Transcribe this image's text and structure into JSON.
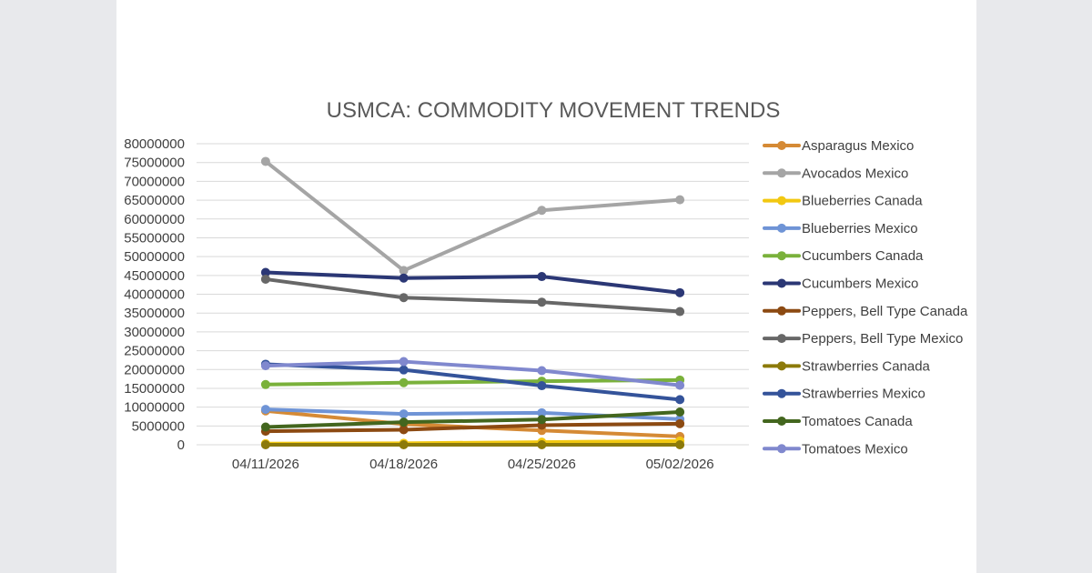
{
  "chart_data": {
    "type": "line",
    "title": "USMCA: COMMODITY MOVEMENT TRENDS",
    "xlabel": "",
    "ylabel": "",
    "categories": [
      "04/11/2026",
      "04/18/2026",
      "04/25/2026",
      "05/02/2026"
    ],
    "ylim": [
      0,
      80000000
    ],
    "yticks": [
      "0",
      "5000000",
      "10000000",
      "15000000",
      "20000000",
      "25000000",
      "30000000",
      "35000000",
      "40000000",
      "45000000",
      "50000000",
      "55000000",
      "60000000",
      "65000000",
      "70000000",
      "75000000",
      "80000000"
    ],
    "grid": true,
    "legend_position": "right",
    "series": [
      {
        "name": "Asparagus Mexico",
        "color": "#D58A35",
        "values": [
          9000000,
          5500000,
          3800000,
          2200000
        ]
      },
      {
        "name": "Avocados Mexico",
        "color": "#A5A5A5",
        "values": [
          75300000,
          46300000,
          62300000,
          65100000
        ]
      },
      {
        "name": "Blueberries Canada",
        "color": "#F2C811",
        "values": [
          300000,
          400000,
          700000,
          1000000
        ]
      },
      {
        "name": "Blueberries Mexico",
        "color": "#6F94D6",
        "values": [
          9400000,
          8200000,
          8500000,
          6800000
        ]
      },
      {
        "name": "Cucumbers Canada",
        "color": "#7AB13B",
        "values": [
          16000000,
          16500000,
          16900000,
          17200000
        ]
      },
      {
        "name": "Cucumbers Mexico",
        "color": "#2B3775",
        "values": [
          45800000,
          44300000,
          44700000,
          40400000
        ]
      },
      {
        "name": "Peppers, Bell Type Canada",
        "color": "#8C4A12",
        "values": [
          3600000,
          4000000,
          5200000,
          5600000
        ]
      },
      {
        "name": "Peppers, Bell Type Mexico",
        "color": "#676767",
        "values": [
          44000000,
          39100000,
          37900000,
          35400000
        ]
      },
      {
        "name": "Strawberries Canada",
        "color": "#8C7A0A",
        "values": [
          0,
          0,
          0,
          0
        ]
      },
      {
        "name": "Strawberries Mexico",
        "color": "#34539A",
        "values": [
          21400000,
          19900000,
          15700000,
          12000000
        ]
      },
      {
        "name": "Tomatoes Canada",
        "color": "#43661E",
        "values": [
          4700000,
          6000000,
          6700000,
          8700000
        ]
      },
      {
        "name": "Tomatoes Mexico",
        "color": "#8088CE",
        "values": [
          21000000,
          22100000,
          19700000,
          15800000
        ]
      }
    ]
  }
}
